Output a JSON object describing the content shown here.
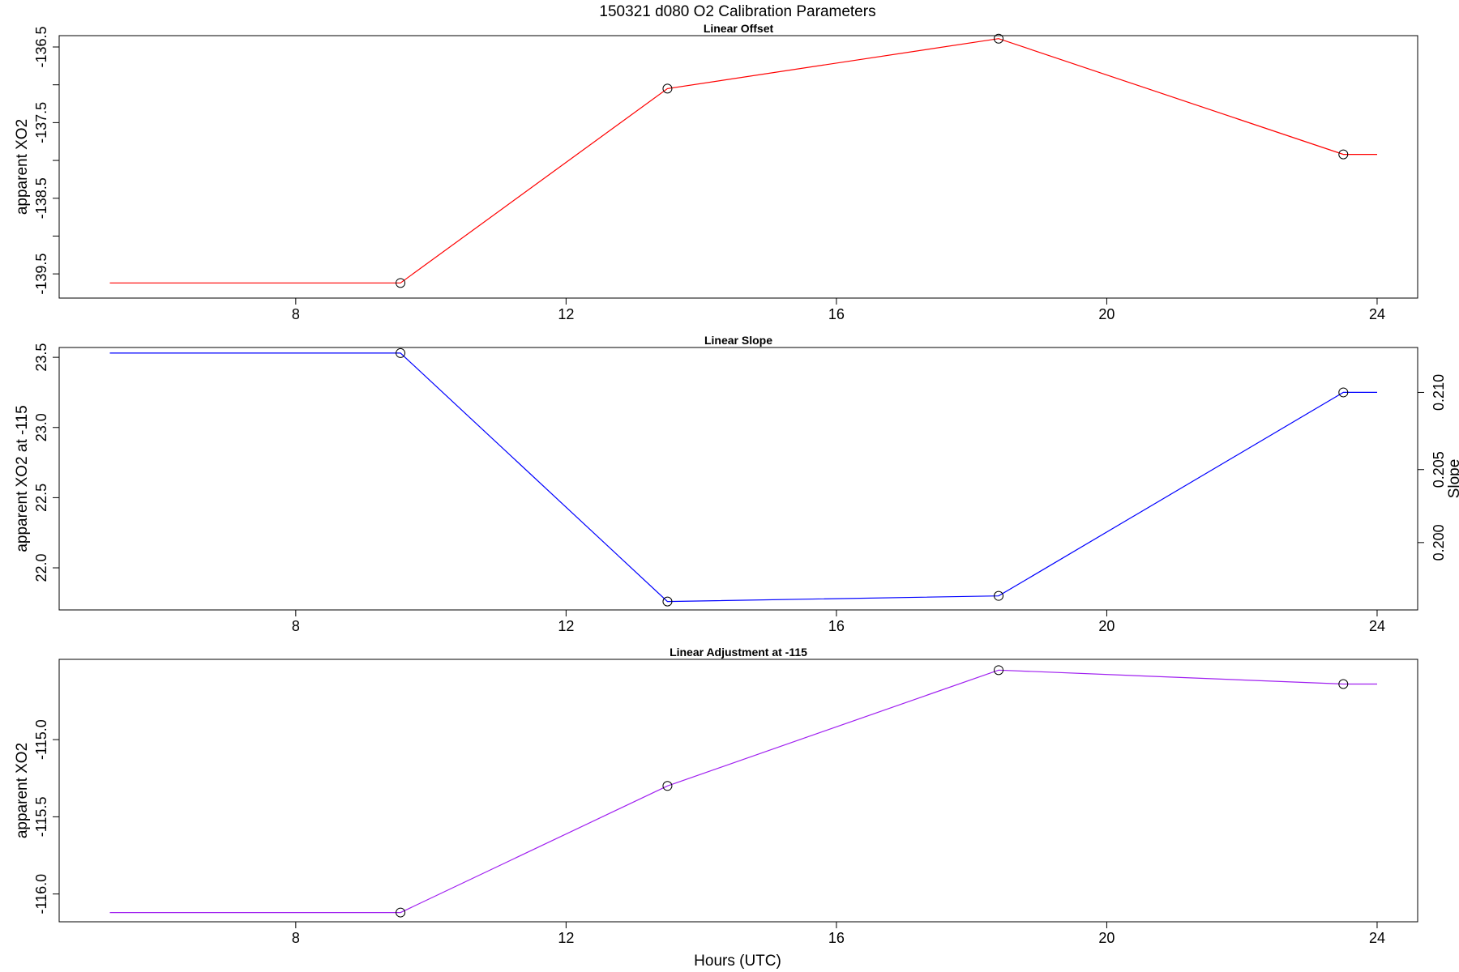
{
  "title": "150321   d080   O2 Calibration Parameters",
  "xlabel": "Hours (UTC)",
  "chart_data": [
    {
      "type": "line",
      "title": "Linear Offset",
      "ylabel": "apparent XO2",
      "color": "#ff0000",
      "xlim": [
        4.5,
        24.6
      ],
      "ylim": [
        -139.82,
        -136.35
      ],
      "x_ticks": [
        8,
        12,
        16,
        20,
        24
      ],
      "y_ticks": [
        -139.5,
        -139.0,
        -138.5,
        -138.0,
        -137.5,
        -137.0,
        -136.5
      ],
      "y_tick_labels": [
        "-139.5",
        "",
        "-138.5",
        "",
        "-137.5",
        "",
        "-136.5"
      ],
      "x": [
        5.25,
        9.55,
        13.5,
        18.4,
        23.5,
        24.0
      ],
      "y": [
        -139.62,
        -139.62,
        -137.05,
        -136.39,
        -137.92,
        -137.92
      ],
      "markers": [
        9.55,
        13.5,
        18.4,
        23.5
      ]
    },
    {
      "type": "line",
      "title": "Linear Slope",
      "ylabel": "apparent XO2 at -115",
      "y2label": "Slope",
      "color": "#0000ff",
      "xlim": [
        4.5,
        24.6
      ],
      "ylim": [
        21.7,
        23.57
      ],
      "x_ticks": [
        8,
        12,
        16,
        20,
        24
      ],
      "y_ticks": [
        22.0,
        22.5,
        23.0,
        23.5
      ],
      "y_tick_labels": [
        "22.0",
        "22.5",
        "23.0",
        "23.5"
      ],
      "y2_ticks": [
        {
          "label": "0.200",
          "y": 22.18
        },
        {
          "label": "0.205",
          "y": 22.7
        },
        {
          "label": "0.210",
          "y": 23.25
        }
      ],
      "x": [
        5.25,
        9.55,
        13.5,
        18.4,
        23.5,
        24.0
      ],
      "y": [
        23.53,
        23.53,
        21.76,
        21.8,
        23.25,
        23.25
      ],
      "markers": [
        9.55,
        13.5,
        18.4,
        23.5
      ]
    },
    {
      "type": "line",
      "title": "Linear Adjustment at -115",
      "ylabel": "apparent XO2",
      "color": "#a020f0",
      "xlim": [
        4.5,
        24.6
      ],
      "ylim": [
        -116.18,
        -114.48
      ],
      "x_ticks": [
        8,
        12,
        16,
        20,
        24
      ],
      "y_ticks": [
        -116.0,
        -115.5,
        -115.0
      ],
      "y_tick_labels": [
        "-116.0",
        "-115.5",
        "-115.0"
      ],
      "x": [
        5.25,
        9.55,
        13.5,
        18.4,
        23.5,
        24.0
      ],
      "y": [
        -116.12,
        -116.12,
        -115.3,
        -114.55,
        -114.64,
        -114.64
      ],
      "markers": [
        9.55,
        13.5,
        18.4,
        23.5
      ]
    }
  ]
}
